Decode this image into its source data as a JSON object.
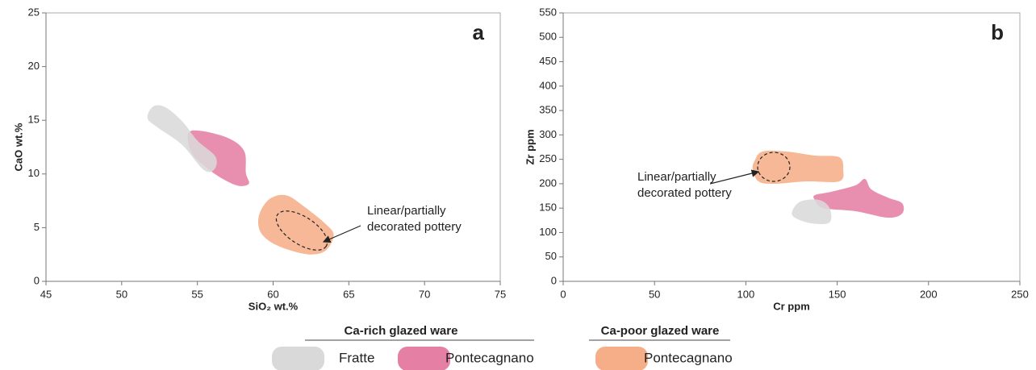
{
  "chart_data": [
    {
      "type": "region",
      "panel": "a",
      "xlabel": "SiO₂ wt.%",
      "ylabel": "CaO wt.%",
      "xlim": [
        45,
        75
      ],
      "xticks": [
        45,
        50,
        55,
        60,
        65,
        70,
        75
      ],
      "ylim": [
        0,
        25
      ],
      "yticks": [
        0,
        5,
        10,
        15,
        20,
        25
      ],
      "annotation": [
        "Linear/partially",
        "decorated pottery"
      ],
      "series": [
        {
          "color": "#d9d9d9",
          "x": [
            51.7,
            52.1,
            52.9,
            54.0,
            55.0,
            56.2,
            56.1,
            55.4,
            54.0,
            52.4
          ],
          "y": [
            15.2,
            16.3,
            16.2,
            14.9,
            13.1,
            11.6,
            10.4,
            10.4,
            12.7,
            14.3
          ]
        },
        {
          "color": "#e57fa4",
          "x": [
            54.4,
            55.3,
            57.1,
            58.1,
            58.2,
            58.4,
            57.7,
            56.6,
            55.5,
            54.6
          ],
          "y": [
            13.8,
            14.0,
            13.3,
            12.1,
            10.1,
            9.1,
            8.9,
            9.6,
            10.7,
            12.0
          ]
        },
        {
          "color": "#f5ae88",
          "x": [
            59.1,
            59.8,
            60.9,
            62.2,
            63.5,
            64.0,
            63.5,
            62.5,
            61.1,
            59.8,
            59.1
          ],
          "y": [
            6.3,
            7.7,
            8.0,
            6.8,
            5.3,
            4.3,
            2.9,
            2.5,
            2.9,
            3.7,
            4.8
          ]
        }
      ]
    },
    {
      "type": "region",
      "panel": "b",
      "xlabel": "Cr ppm",
      "ylabel": "Zr ppm",
      "xlim": [
        0,
        250
      ],
      "xticks": [
        0,
        50,
        100,
        150,
        200,
        250
      ],
      "ylim": [
        0,
        550
      ],
      "yticks": [
        0,
        50,
        100,
        150,
        200,
        250,
        300,
        350,
        400,
        450,
        500,
        550
      ],
      "annotation": [
        "Linear/partially",
        "decorated pottery"
      ],
      "series": [
        {
          "color": "#d9d9d9",
          "x": [
            125.4,
            129.9,
            140.0,
            145.8,
            145.8,
            135.6,
            126.8
          ],
          "y": [
            143.7,
            163.5,
            166.8,
            150.3,
            120.6,
            119.0,
            130.5
          ]
        },
        {
          "color": "#e57fa4",
          "x": [
            137.8,
            146.6,
            159.9,
            165.2,
            168.7,
            177.6,
            185.5,
            185.5,
            177.6,
            159.9,
            142.2,
            137.8
          ],
          "y": [
            176.7,
            183.3,
            196.5,
            209.8,
            188.3,
            171.8,
            160.2,
            138.8,
            130.5,
            143.7,
            150.3,
            166.8
          ]
        },
        {
          "color": "#f5ae88",
          "x": [
            104.7,
            109.1,
            122.3,
            137.8,
            151.1,
            153.3,
            151.1,
            133.4,
            115.7,
            106.9,
            103.8
          ],
          "y": [
            246.1,
            265.9,
            265.9,
            257.7,
            254.4,
            229.6,
            204.8,
            204.8,
            199.9,
            204.8,
            229.6
          ]
        }
      ]
    }
  ],
  "legend": [
    {
      "title": "Ca-rich glazed ware",
      "items": [
        {
          "name": "Fratte",
          "color": "#d9d9d9"
        },
        {
          "name": "Pontecagnano",
          "color": "#e57fa4"
        }
      ]
    },
    {
      "title": "Ca-poor glazed ware",
      "items": [
        {
          "name": "Pontecagnano",
          "color": "#f5ae88"
        }
      ]
    }
  ]
}
